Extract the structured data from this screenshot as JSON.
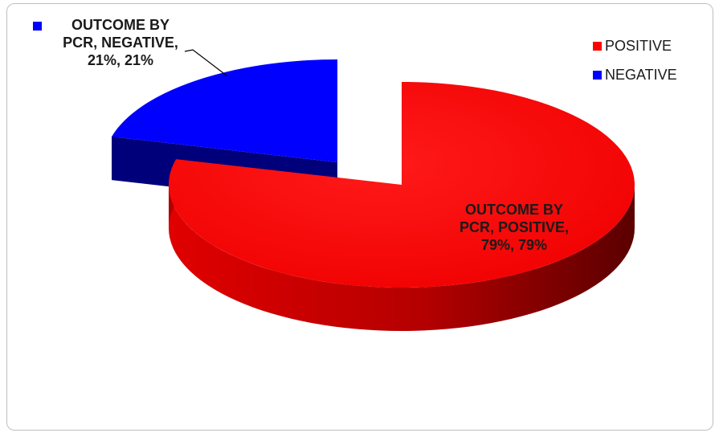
{
  "chart_data": {
    "type": "pie",
    "style": "3d-exploded",
    "categories": [
      "POSITIVE",
      "NEGATIVE"
    ],
    "values": [
      79,
      21
    ],
    "colors": [
      "#ff0000",
      "#0000ff"
    ],
    "data_labels": [
      "OUTCOME BY\nPCR, POSITIVE,\n79%, 79%",
      "OUTCOME BY\nPCR, NEGATIVE,\n21%, 21%"
    ],
    "legend": {
      "placement": "top-right",
      "items": [
        {
          "label": "POSITIVE",
          "color": "#ff0000"
        },
        {
          "label": "NEGATIVE",
          "color": "#0000ff"
        }
      ]
    }
  }
}
